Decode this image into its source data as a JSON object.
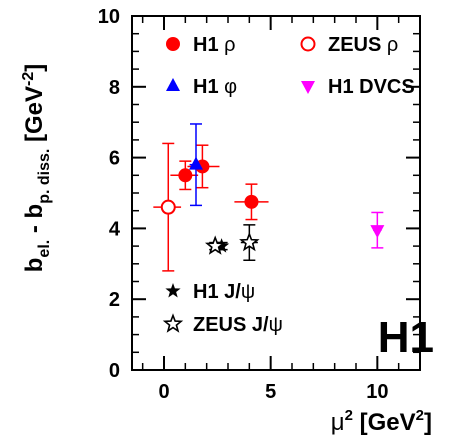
{
  "chart_data": {
    "type": "scatter",
    "xlabel": "μ² [GeV²]",
    "ylabel": "b_el. - b_p. diss. [GeV⁻²]",
    "xlim": [
      -1.5,
      12
    ],
    "ylim": [
      0,
      10
    ],
    "x_ticks": [
      0,
      5,
      10
    ],
    "y_ticks": [
      0,
      2,
      4,
      6,
      8,
      10
    ],
    "grid": false,
    "stamp": "H1",
    "colors": {
      "red": "#ff0000",
      "blue": "#0000ff",
      "magenta": "#ff00ff",
      "black": "#000000"
    },
    "series": [
      {
        "name": "H1 ρ",
        "marker": "filled-circle",
        "color": "#ff0000",
        "points": [
          {
            "x": 1.0,
            "y": 5.5,
            "y_lo": 5.1,
            "y_hi": 5.9,
            "x_lo": 0.3,
            "x_hi": 1.6
          },
          {
            "x": 1.8,
            "y": 5.75,
            "y_lo": 5.15,
            "y_hi": 6.35,
            "x_lo": 1.1,
            "x_hi": 2.6
          },
          {
            "x": 4.1,
            "y": 4.75,
            "y_lo": 4.25,
            "y_hi": 5.25,
            "x_lo": 3.3,
            "x_hi": 4.9
          }
        ]
      },
      {
        "name": "ZEUS ρ",
        "marker": "open-circle",
        "color": "#ff0000",
        "points": [
          {
            "x": 0.2,
            "y": 4.6,
            "y_lo": 2.8,
            "y_hi": 6.4,
            "x_lo": -0.5,
            "x_hi": 0.8
          }
        ]
      },
      {
        "name": "H1 φ",
        "marker": "triangle-up",
        "color": "#0000ff",
        "points": [
          {
            "x": 1.5,
            "y": 5.8,
            "y_lo": 4.65,
            "y_hi": 6.95,
            "x_lo": 1.2,
            "x_hi": 1.9
          }
        ]
      },
      {
        "name": "H1 DVCS",
        "marker": "triangle-down",
        "color": "#ff00ff",
        "points": [
          {
            "x": 10.0,
            "y": 3.95,
            "y_lo": 3.45,
            "y_hi": 4.45,
            "x_lo": 9.8,
            "x_hi": 10.2
          }
        ]
      },
      {
        "name": "H1 J/ψ",
        "marker": "filled-star",
        "color": "#000000",
        "points": [
          {
            "x": 2.7,
            "y": 3.5,
            "y_lo": 3.4,
            "y_hi": 3.6
          }
        ]
      },
      {
        "name": "ZEUS J/ψ",
        "marker": "open-star",
        "color": "#000000",
        "points": [
          {
            "x": 2.4,
            "y": 3.5,
            "y_lo": 3.4,
            "y_hi": 3.6
          },
          {
            "x": 4.0,
            "y": 3.6,
            "y_lo": 3.1,
            "y_hi": 4.1,
            "x_lo": 3.6,
            "x_hi": 4.4
          }
        ]
      }
    ]
  }
}
